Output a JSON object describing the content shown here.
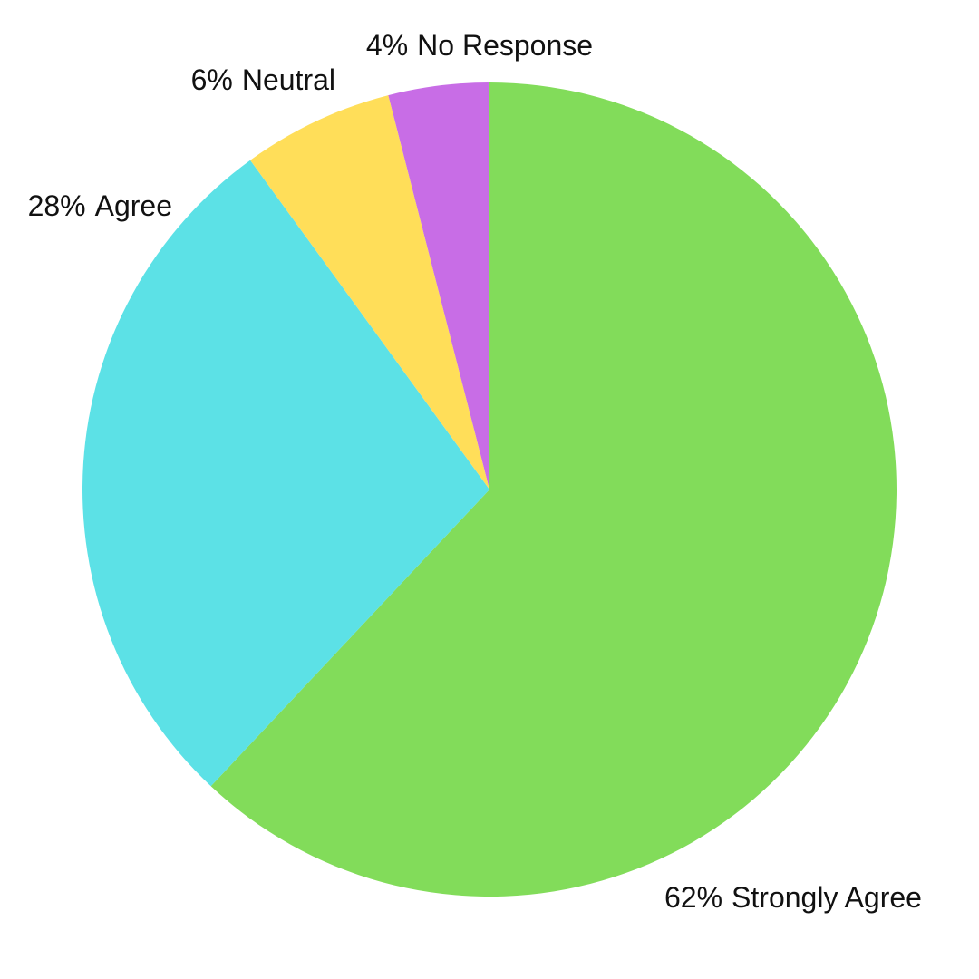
{
  "chart_data": {
    "type": "pie",
    "categories": [
      "Strongly Agree",
      "Agree",
      "Neutral",
      "No Response"
    ],
    "values": [
      62,
      28,
      6,
      4
    ],
    "value_labels": [
      "62%",
      "28%",
      "6%",
      "4%"
    ],
    "colors": [
      "#82dc5a",
      "#5ce1e6",
      "#ffde59",
      "#c86de6"
    ]
  }
}
